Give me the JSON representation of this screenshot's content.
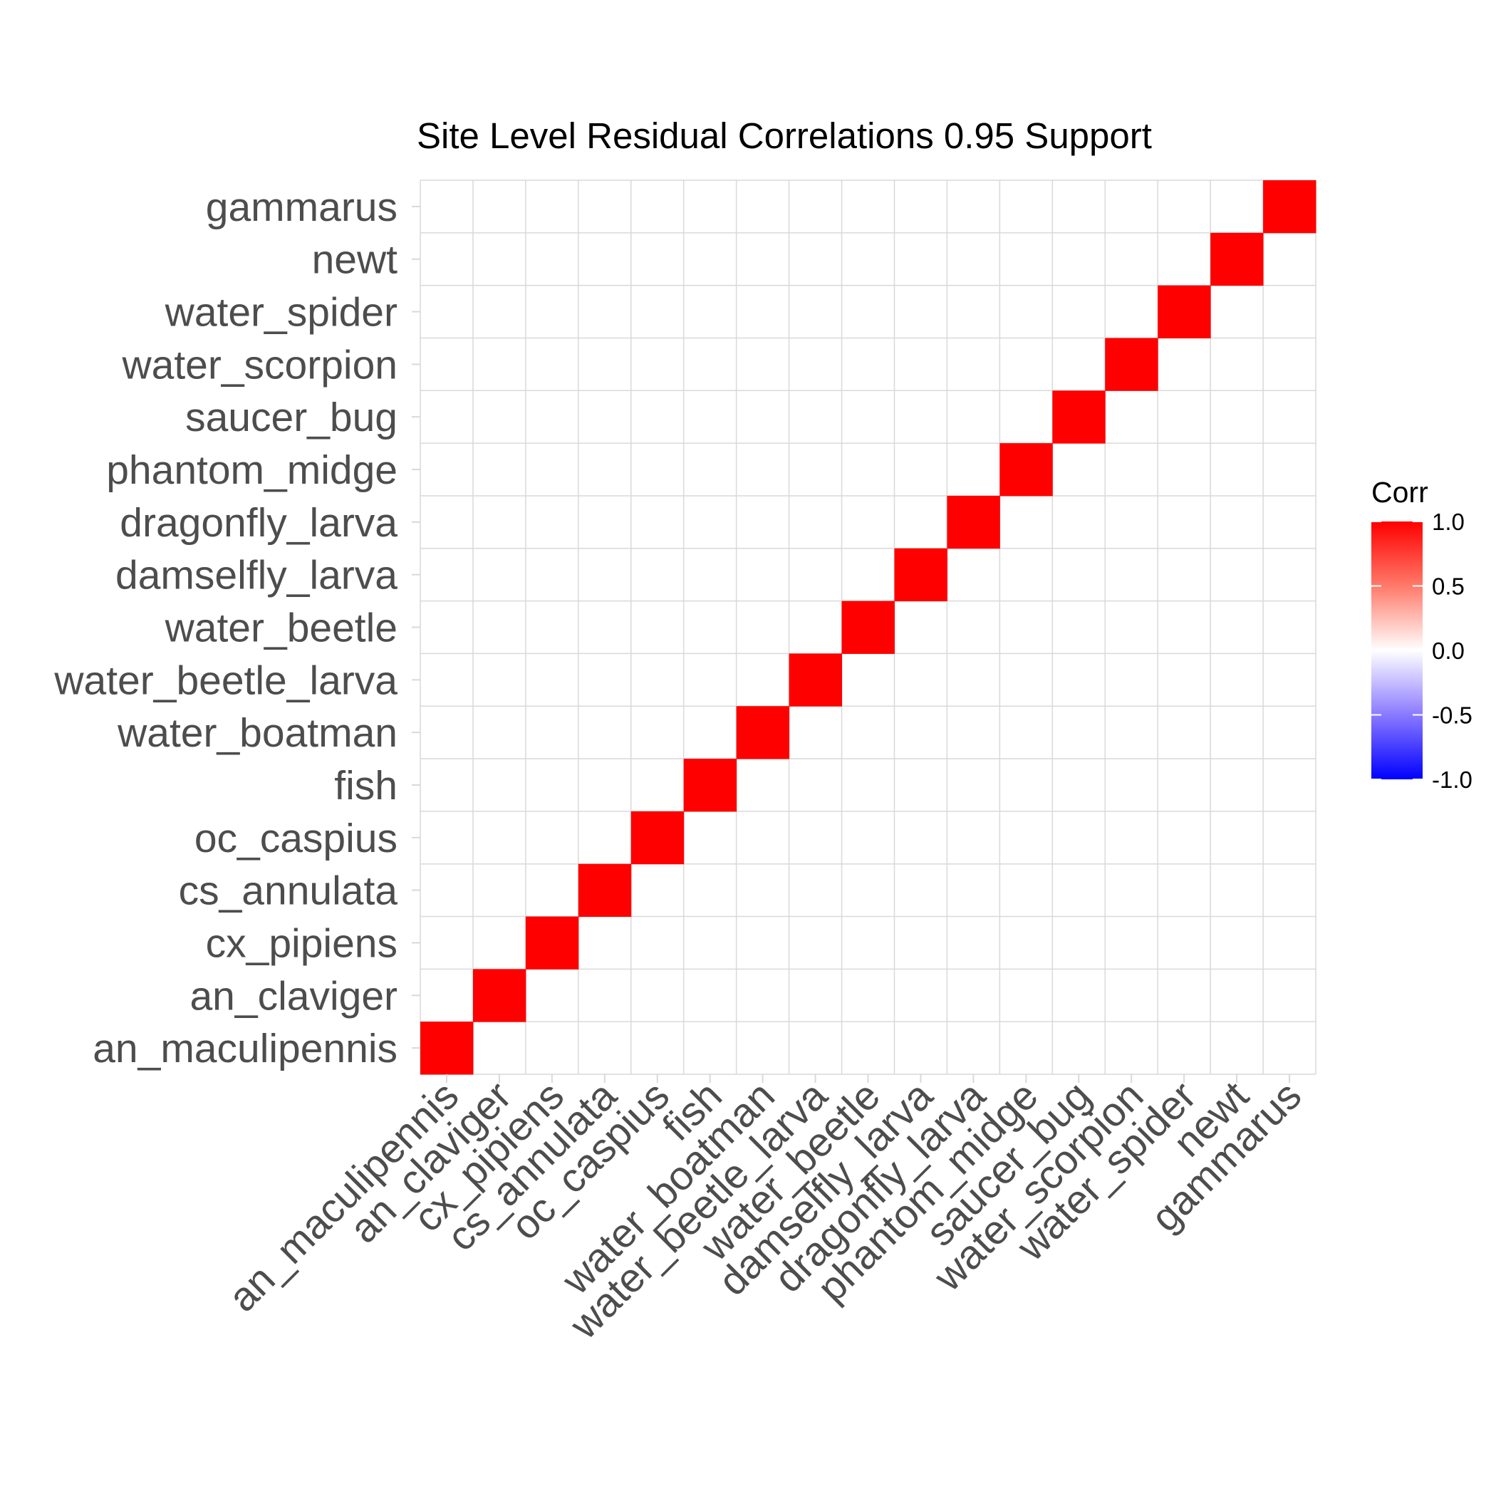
{
  "chart_data": {
    "type": "heatmap",
    "title": "Site Level Residual Correlations 0.95 Support",
    "categories": [
      "an_maculipennis",
      "an_claviger",
      "cx_pipiens",
      "cs_annulata",
      "oc_caspius",
      "fish",
      "water_boatman",
      "water_beetle_larva",
      "water_beetle",
      "damselfly_larva",
      "dragonfly_larva",
      "phantom_midge",
      "saucer_bug",
      "water_scorpion",
      "water_spider",
      "newt",
      "gammarus"
    ],
    "cells": [
      {
        "x": "an_maculipennis",
        "y": "an_maculipennis",
        "value": 1
      },
      {
        "x": "an_claviger",
        "y": "an_claviger",
        "value": 1
      },
      {
        "x": "cx_pipiens",
        "y": "cx_pipiens",
        "value": 1
      },
      {
        "x": "cs_annulata",
        "y": "cs_annulata",
        "value": 1
      },
      {
        "x": "oc_caspius",
        "y": "oc_caspius",
        "value": 1
      },
      {
        "x": "fish",
        "y": "fish",
        "value": 1
      },
      {
        "x": "water_boatman",
        "y": "water_boatman",
        "value": 1
      },
      {
        "x": "water_beetle_larva",
        "y": "water_beetle_larva",
        "value": 1
      },
      {
        "x": "water_beetle",
        "y": "water_beetle",
        "value": 1
      },
      {
        "x": "damselfly_larva",
        "y": "damselfly_larva",
        "value": 1
      },
      {
        "x": "dragonfly_larva",
        "y": "dragonfly_larva",
        "value": 1
      },
      {
        "x": "phantom_midge",
        "y": "phantom_midge",
        "value": 1
      },
      {
        "x": "saucer_bug",
        "y": "saucer_bug",
        "value": 1
      },
      {
        "x": "water_scorpion",
        "y": "water_scorpion",
        "value": 1
      },
      {
        "x": "water_spider",
        "y": "water_spider",
        "value": 1
      },
      {
        "x": "newt",
        "y": "newt",
        "value": 1
      },
      {
        "x": "gammarus",
        "y": "gammarus",
        "value": 1
      }
    ],
    "legend": {
      "title": "Corr",
      "ticks": [
        "1.0",
        "0.5",
        "0.0",
        "-0.5",
        "-1.0"
      ],
      "range": [
        -1,
        1
      ],
      "colors": {
        "low": "#0000ff",
        "mid": "#ffffff",
        "high": "#ff0000"
      },
      "placement": "right"
    },
    "grid": true,
    "colors": {
      "cell": "#ff0000",
      "grid": "#d9d9d9",
      "label": "#4d4d4d"
    }
  }
}
